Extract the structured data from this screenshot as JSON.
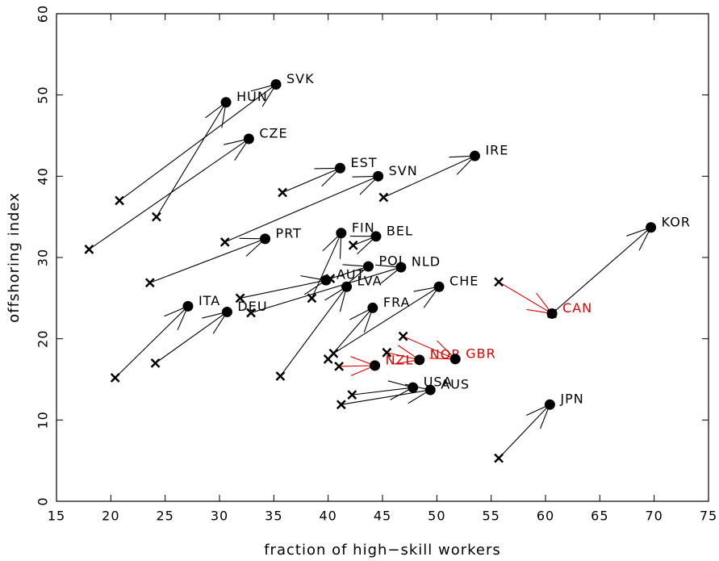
{
  "chart_data": {
    "type": "arrow",
    "xlabel": "fraction of high−skill workers",
    "ylabel": "offshoring index",
    "xlim": [
      15,
      75
    ],
    "xticks": [
      15,
      20,
      25,
      30,
      35,
      40,
      45,
      50,
      55,
      60,
      65,
      70,
      75
    ],
    "ylim": [
      0,
      60
    ],
    "yticks": [
      0,
      10,
      20,
      30,
      40,
      50,
      60
    ],
    "countries": [
      {
        "label": "SVK",
        "color": "#000000",
        "x_start": 20.8,
        "y_start": 37.0,
        "x_end": 35.2,
        "y_end": 51.3
      },
      {
        "label": "HUN",
        "color": "#000000",
        "x_start": 24.2,
        "y_start": 35.0,
        "x_end": 30.6,
        "y_end": 49.1
      },
      {
        "label": "CZE",
        "color": "#000000",
        "x_start": 18.0,
        "y_start": 31.0,
        "x_end": 32.7,
        "y_end": 44.6
      },
      {
        "label": "EST",
        "color": "#000000",
        "x_start": 35.8,
        "y_start": 38.0,
        "x_end": 41.1,
        "y_end": 41.0
      },
      {
        "label": "SVN",
        "color": "#000000",
        "x_start": 30.5,
        "y_start": 31.9,
        "x_end": 44.6,
        "y_end": 40.0
      },
      {
        "label": "IRE",
        "color": "#000000",
        "x_start": 45.1,
        "y_start": 37.4,
        "x_end": 53.5,
        "y_end": 42.5
      },
      {
        "label": "PRT",
        "color": "#000000",
        "x_start": 23.6,
        "y_start": 26.9,
        "x_end": 34.2,
        "y_end": 32.3
      },
      {
        "label": "FIN",
        "color": "#000000",
        "x_start": 38.5,
        "y_start": 25.0,
        "x_end": 41.2,
        "y_end": 33.0
      },
      {
        "label": "BEL",
        "color": "#000000",
        "x_start": 42.3,
        "y_start": 31.5,
        "x_end": 44.4,
        "y_end": 32.6
      },
      {
        "label": "POL",
        "color": "#000000",
        "x_start": 40.2,
        "y_start": 27.4,
        "x_end": 43.7,
        "y_end": 28.9
      },
      {
        "label": "NLD",
        "color": "#000000",
        "x_start": 32.9,
        "y_start": 23.2,
        "x_end": 46.7,
        "y_end": 28.8
      },
      {
        "label": "AUT",
        "color": "#000000",
        "x_start": 31.9,
        "y_start": 25.0,
        "x_end": 39.8,
        "y_end": 27.2
      },
      {
        "label": "LVA",
        "color": "#000000",
        "x_start": 35.6,
        "y_start": 15.4,
        "x_end": 41.7,
        "y_end": 26.4
      },
      {
        "label": "CHE",
        "color": "#000000",
        "x_start": 40.5,
        "y_start": 18.2,
        "x_end": 50.2,
        "y_end": 26.4
      },
      {
        "label": "ITA",
        "color": "#000000",
        "x_start": 20.4,
        "y_start": 15.2,
        "x_end": 27.1,
        "y_end": 24.0
      },
      {
        "label": "DEU",
        "color": "#000000",
        "x_start": 24.1,
        "y_start": 17.0,
        "x_end": 30.7,
        "y_end": 23.3
      },
      {
        "label": "FRA",
        "color": "#000000",
        "x_start": 40.0,
        "y_start": 17.5,
        "x_end": 44.1,
        "y_end": 23.8
      },
      {
        "label": "KOR",
        "color": "#000000",
        "x_start": 60.6,
        "y_start": 23.1,
        "x_end": 69.7,
        "y_end": 33.7
      },
      {
        "label": "CAN",
        "color": "#e00000",
        "x_start": 55.7,
        "y_start": 27.0,
        "x_end": 60.6,
        "y_end": 23.1
      },
      {
        "label": "NZL",
        "color": "#e00000",
        "x_start": 41.0,
        "y_start": 16.6,
        "x_end": 44.3,
        "y_end": 16.7
      },
      {
        "label": "NOR",
        "color": "#e00000",
        "x_start": 45.4,
        "y_start": 18.3,
        "x_end": 48.4,
        "y_end": 17.4
      },
      {
        "label": "GBR",
        "color": "#e00000",
        "x_start": 46.9,
        "y_start": 20.3,
        "x_end": 51.7,
        "y_end": 17.5
      },
      {
        "label": "USA",
        "color": "#000000",
        "x_start": 42.2,
        "y_start": 13.1,
        "x_end": 47.8,
        "y_end": 14.0
      },
      {
        "label": "AUS",
        "color": "#000000",
        "x_start": 41.2,
        "y_start": 11.9,
        "x_end": 49.4,
        "y_end": 13.7
      },
      {
        "label": "JPN",
        "color": "#000000",
        "x_start": 55.7,
        "y_start": 5.3,
        "x_end": 60.4,
        "y_end": 11.9
      }
    ]
  }
}
